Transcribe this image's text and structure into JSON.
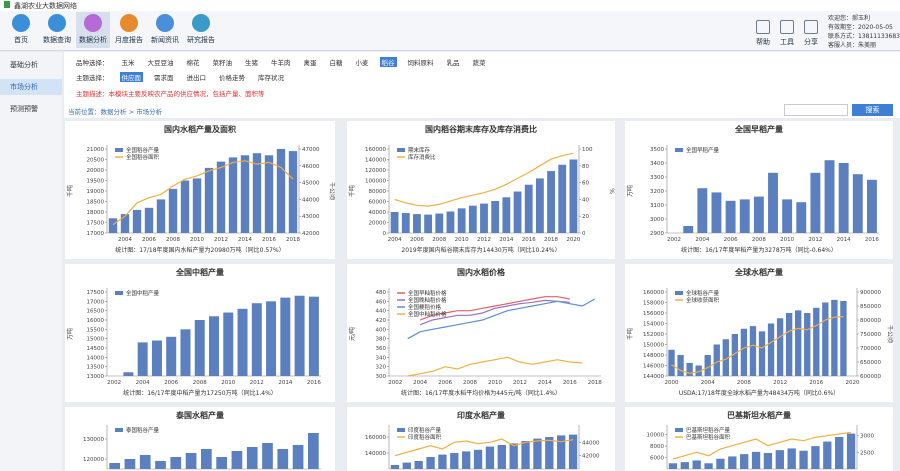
{
  "header": {
    "title": "鑫湖农业大数据网络",
    "nav": [
      "首页",
      "数据查询",
      "数据分析",
      "月度报告",
      "新闻资讯",
      "研究报告"
    ],
    "nav_active": 2,
    "tools": [
      "帮助",
      "工具",
      "分享"
    ],
    "user": [
      "欢迎您：郝玉利",
      "有效期至：2020-05-05",
      "联系方式：13811133683",
      "客服人员：朱美丽"
    ]
  },
  "sidebar": {
    "items": [
      "基础分析",
      "市场分析",
      "预测预警"
    ],
    "active": 1
  },
  "filters": {
    "variety_label": "品种选择：",
    "varieties": [
      "玉米",
      "大豆豆油",
      "棉花",
      "菜籽油",
      "生猪",
      "牛羊肉",
      "禽蛋",
      "白糖",
      "小麦",
      "稻谷",
      "饲料原料",
      "乳品",
      "蔬菜"
    ],
    "variety_active": 9,
    "theme_label": "主题选择：",
    "themes": [
      "供应面",
      "需求面",
      "进出口",
      "价格走势",
      "库存状况"
    ],
    "theme_active": 0,
    "description": "主题描述：本模块主要反映农产品的供应情况，包括产量、面积等"
  },
  "breadcrumb": "当前位置：数据分析 > 市场分析",
  "search_button": "搜索",
  "charts": [
    {
      "title": "国内水稻产量及面积",
      "categories": [
        null,
        "2004",
        null,
        "2006",
        null,
        "2008",
        null,
        "2010",
        null,
        "2012",
        null,
        "2014",
        null,
        "2016",
        null,
        "2018"
      ],
      "ylabel": "千吨",
      "y2label": "千公顷",
      "ylim": [
        17000,
        21000
      ],
      "yticks": [
        17000,
        17500,
        18000,
        18500,
        19000,
        19500,
        20000,
        20500,
        21000
      ],
      "y2lim": [
        42000,
        47000
      ],
      "y2ticks": [
        42000,
        43000,
        44000,
        45000,
        46000,
        47000
      ],
      "series": [
        {
          "name": "全国稻谷产量",
          "kind": "bar",
          "color": "#5b7fbf",
          "values": [
            17700,
            17900,
            18100,
            18200,
            18600,
            19100,
            19500,
            19600,
            20100,
            20400,
            20600,
            20700,
            20800,
            20700,
            21000,
            20900
          ]
        },
        {
          "name": "全国稻谷面积",
          "kind": "line",
          "axis": "y2",
          "color": "#f0b040",
          "values": [
            42500,
            43000,
            43800,
            44100,
            44300,
            44800,
            45200,
            45400,
            45700,
            45900,
            46200,
            46300,
            46100,
            46200,
            45900,
            45200
          ]
        }
      ],
      "footnote": "统计图：17/18年度国内水稻产量为20980万吨（同比0.57%）"
    },
    {
      "title": "国内稻谷期末库存及库存消费比",
      "categories": [
        "2004",
        null,
        "2006",
        null,
        "2008",
        null,
        "2010",
        null,
        "2012",
        null,
        "2014",
        null,
        "2016",
        null,
        "2018",
        null,
        "2020"
      ],
      "ylabel": "千吨",
      "y2label": "%",
      "ylim": [
        0,
        160000
      ],
      "yticks": [
        0,
        20000,
        40000,
        60000,
        80000,
        100000,
        120000,
        140000,
        160000
      ],
      "y2lim": [
        0,
        100
      ],
      "y2ticks": [
        0,
        20,
        40,
        60,
        80,
        100
      ],
      "series": [
        {
          "name": "期末库存",
          "kind": "bar",
          "color": "#5b7fbf",
          "values": [
            40000,
            38000,
            36000,
            35000,
            37000,
            41000,
            47000,
            52000,
            56000,
            61000,
            68000,
            79000,
            92000,
            104000,
            118000,
            130000,
            140000
          ]
        },
        {
          "name": "库存消费比",
          "kind": "line",
          "axis": "y2",
          "color": "#f0b040",
          "values": [
            40,
            36,
            33,
            32,
            34,
            38,
            42,
            45,
            48,
            52,
            58,
            65,
            72,
            80,
            88,
            92,
            95
          ]
        }
      ],
      "footnote": "2019年度国内稻谷期末库存为14430万吨（同比10.24%）"
    },
    {
      "title": "全国早稻产量",
      "categories": [
        "2002",
        null,
        "2004",
        null,
        "2006",
        null,
        "2008",
        null,
        "2010",
        null,
        "2012",
        null,
        "2014",
        null,
        "2016"
      ],
      "ylabel": "万吨",
      "ylim": [
        2900,
        3500
      ],
      "yticks": [
        2900,
        3000,
        3100,
        3200,
        3300,
        3400,
        3500
      ],
      "series": [
        {
          "name": "全国早稻产量",
          "kind": "bar",
          "color": "#5b7fbf",
          "values": [
            null,
            2950,
            3220,
            3190,
            3130,
            3140,
            3160,
            3330,
            3140,
            3120,
            3330,
            3420,
            3400,
            3320,
            3280
          ]
        }
      ],
      "footnote": "统计图：16/17年度早稻产量为3278万吨（同比-0.64%）"
    },
    {
      "title": "全国中稻产量",
      "categories": [
        "2002",
        null,
        "2004",
        null,
        "2006",
        null,
        "2008",
        null,
        "2010",
        null,
        "2012",
        null,
        "2014",
        null,
        "2016"
      ],
      "ylabel": "万吨",
      "ylim": [
        13000,
        17500
      ],
      "yticks": [
        13000,
        13500,
        14000,
        14500,
        15000,
        15500,
        16000,
        16500,
        17000,
        17500
      ],
      "series": [
        {
          "name": "全国中稻产量",
          "kind": "bar",
          "color": "#5b7fbf",
          "values": [
            null,
            13200,
            14800,
            14900,
            15100,
            15500,
            16000,
            16200,
            16400,
            16600,
            16900,
            17000,
            17200,
            17300,
            17250
          ]
        }
      ],
      "footnote": "统计图：16/17年度中稻产量为17250万吨（同比1.4%）"
    },
    {
      "title": "国内水稻价格",
      "categories": [
        "2002",
        null,
        "2004",
        null,
        "2006",
        null,
        "2008",
        null,
        "2010",
        null,
        "2012",
        null,
        "2014",
        null,
        "2016",
        null,
        "2018"
      ],
      "ylabel": "元/吨",
      "ylim": [
        300,
        480
      ],
      "yticks": [
        300,
        320,
        340,
        360,
        380,
        400,
        420,
        440,
        460,
        480
      ],
      "series": [
        {
          "name": "全国早籼稻价格",
          "kind": "line",
          "color": "#e06060",
          "values": [
            null,
            null,
            420,
            430,
            435,
            440,
            440,
            445,
            450,
            455,
            460,
            465,
            470,
            470,
            465,
            null,
            null
          ]
        },
        {
          "name": "全国晚籼稻价格",
          "kind": "line",
          "color": "#9a6fc0",
          "values": [
            null,
            null,
            410,
            420,
            425,
            430,
            430,
            435,
            445,
            450,
            455,
            458,
            462,
            460,
            458,
            null,
            null
          ]
        },
        {
          "name": "全国粳稻价格",
          "kind": "line",
          "color": "#5b8fd0",
          "values": [
            null,
            380,
            395,
            400,
            405,
            410,
            415,
            420,
            430,
            440,
            445,
            450,
            455,
            460,
            455,
            450,
            465
          ]
        },
        {
          "name": "全国中籼稻价格",
          "kind": "line",
          "color": "#f0b040",
          "values": [
            null,
            300,
            305,
            310,
            320,
            315,
            325,
            330,
            335,
            340,
            330,
            325,
            330,
            335,
            330,
            328,
            null
          ]
        }
      ],
      "footnote": "统计图：16/17年度水稻平均价格为445元/吨（同比1.4%）"
    },
    {
      "title": "全球水稻产量",
      "categories": [
        "2000",
        null,
        null,
        null,
        "2004",
        null,
        null,
        null,
        "2008",
        null,
        null,
        null,
        "2012",
        null,
        null,
        null,
        "2016",
        null,
        null,
        null,
        "2020"
      ],
      "ylabel": "千吨",
      "y2label": "千公顷",
      "ylim": [
        144000,
        160000
      ],
      "yticks": [
        144000,
        146000,
        148000,
        150000,
        152000,
        154000,
        156000,
        158000,
        160000
      ],
      "y2lim": [
        600000,
        900000
      ],
      "y2ticks": [
        600000,
        650000,
        700000,
        750000,
        800000,
        850000,
        900000
      ],
      "series": [
        {
          "name": "全球稻谷产量",
          "kind": "bar",
          "color": "#5b7fbf",
          "values": [
            149000,
            148000,
            146500,
            146000,
            148000,
            150000,
            151000,
            152000,
            153000,
            153500,
            152500,
            154000,
            155000,
            156000,
            156500,
            156000,
            157000,
            158000,
            158500,
            158300,
            null
          ]
        },
        {
          "name": "全球收获面积",
          "kind": "line",
          "axis": "y2",
          "color": "#f0b040",
          "values": [
            640000,
            620000,
            610000,
            615000,
            630000,
            650000,
            660000,
            680000,
            700000,
            710000,
            700000,
            720000,
            740000,
            760000,
            770000,
            765000,
            780000,
            800000,
            810000,
            812000,
            null
          ]
        }
      ],
      "footnote": "USDA:17/18年度全球水稻产量为48434万吨（同比0.6%）"
    },
    {
      "title": "泰国水稻产量",
      "ylim": [
        115000,
        135000
      ],
      "yticks": [
        120000,
        130000
      ],
      "series": [
        {
          "name": "泰国稻谷产量",
          "kind": "bar",
          "color": "#5b7fbf",
          "values": [
            118000,
            120000,
            122000,
            119000,
            121000,
            123000,
            125000,
            121000,
            124000,
            126000,
            128000,
            125000,
            127000,
            133000
          ]
        }
      ]
    },
    {
      "title": "印度水稻产量",
      "ylim": [
        120000,
        170000
      ],
      "yticks": [
        140000,
        160000
      ],
      "y2lim": [
        40000,
        46000
      ],
      "y2ticks": [
        42000,
        44000
      ],
      "series": [
        {
          "name": "印度稻谷产量",
          "kind": "bar",
          "color": "#5b7fbf",
          "values": [
            125000,
            128000,
            130000,
            135000,
            138000,
            140000,
            142000,
            144000,
            148000,
            150000,
            152000,
            155000,
            158000,
            160000,
            162000,
            163000
          ]
        },
        {
          "name": "印度稻谷面积",
          "kind": "line",
          "axis": "y2",
          "color": "#f0b040",
          "values": [
            42000,
            42500,
            43000,
            43500,
            43000,
            44000,
            44200,
            43800,
            44000,
            44500,
            43500,
            44000,
            44200,
            44300,
            44100,
            44400
          ]
        }
      ]
    },
    {
      "title": "巴基斯坦水稻产量",
      "ylim": [
        4000,
        11000
      ],
      "yticks": [
        6000,
        8000,
        10000
      ],
      "y2lim": [
        2000,
        3200
      ],
      "y2ticks": [
        2500,
        3000
      ],
      "series": [
        {
          "name": "巴基斯坦稻谷产量",
          "kind": "bar",
          "color": "#5b7fbf",
          "values": [
            5000,
            5200,
            5500,
            5000,
            5800,
            6200,
            6600,
            7000,
            6800,
            7300,
            7600,
            7200,
            8000,
            8800,
            9600,
            10200
          ]
        },
        {
          "name": "巴基斯坦稻谷面积",
          "kind": "line",
          "axis": "y2",
          "color": "#f0b040",
          "values": [
            2300,
            2400,
            2500,
            2400,
            2600,
            2700,
            2800,
            2900,
            2700,
            2800,
            2900,
            2850,
            2950,
            3000,
            3050,
            3100
          ]
        }
      ]
    }
  ]
}
